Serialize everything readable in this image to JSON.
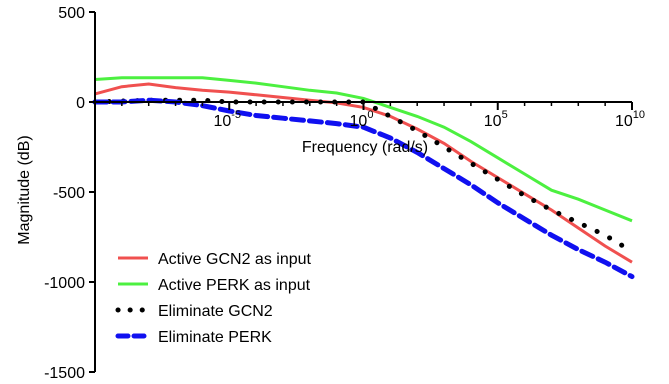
{
  "chart_data": {
    "type": "line",
    "title": "",
    "xlabel": "Frequency (rad/s)",
    "ylabel": "Magnitude (dB)",
    "x_scale": "log",
    "xlim": [
      1e-10,
      10000000000.0
    ],
    "ylim": [
      -1500,
      500
    ],
    "x_ticks": [
      {
        "value": 1e-05,
        "base": "10",
        "exp": "-5"
      },
      {
        "value": 1,
        "base": "10",
        "exp": "0"
      },
      {
        "value": 100000.0,
        "base": "10",
        "exp": "5"
      },
      {
        "value": 10000000000.0,
        "base": "10",
        "exp": "10"
      }
    ],
    "y_ticks": [
      500,
      0,
      -500,
      -1000,
      -1500
    ],
    "legend_position": "bottom-left",
    "series": [
      {
        "name": "Active GCN2 as input",
        "color": "#f0504f",
        "style": "solid",
        "x": [
          1e-10,
          1e-09,
          1e-08,
          1e-07,
          1e-06,
          1e-05,
          0.0001,
          0.001,
          0.01,
          0.1,
          1,
          10.0,
          100.0,
          1000.0,
          10000.0,
          100000.0,
          1000000.0,
          10000000.0,
          100000000.0,
          1000000000.0,
          10000000000.0
        ],
        "y": [
          45,
          85,
          100,
          80,
          65,
          55,
          40,
          25,
          10,
          -5,
          -30,
          -80,
          -150,
          -230,
          -330,
          -420,
          -510,
          -600,
          -700,
          -800,
          -890
        ]
      },
      {
        "name": "Active PERK as input",
        "color": "#4cf040",
        "style": "solid",
        "x": [
          1e-10,
          1e-09,
          1e-08,
          1e-07,
          1e-06,
          1e-05,
          0.0001,
          0.001,
          0.01,
          0.1,
          1,
          10.0,
          100.0,
          1000.0,
          10000.0,
          100000.0,
          1000000.0,
          10000000.0,
          100000000.0,
          1000000000.0,
          10000000000.0
        ],
        "y": [
          125,
          135,
          135,
          135,
          135,
          120,
          105,
          85,
          65,
          50,
          20,
          -30,
          -80,
          -140,
          -220,
          -310,
          -400,
          -490,
          -540,
          -600,
          -660
        ]
      },
      {
        "name": "Eliminate GCN2",
        "color": "#000000",
        "style": "dotted",
        "x": [
          1e-10,
          1e-09,
          1e-08,
          1e-07,
          1e-06,
          1e-05,
          0.0001,
          0.001,
          0.01,
          0.1,
          1,
          10.0,
          100.0,
          1000.0,
          10000.0,
          100000.0,
          1000000.0,
          10000000.0,
          100000000.0,
          1000000000.0,
          10000000000.0
        ],
        "y": [
          0,
          5,
          10,
          10,
          10,
          0,
          0,
          0,
          0,
          0,
          0,
          -80,
          -160,
          -250,
          -340,
          -430,
          -520,
          -600,
          -670,
          -740,
          -830
        ]
      },
      {
        "name": "Eliminate PERK",
        "color": "#1010f0",
        "style": "dashed",
        "x": [
          1e-10,
          1e-09,
          1e-08,
          1e-07,
          1e-06,
          1e-05,
          0.0001,
          0.001,
          0.01,
          0.1,
          1,
          10.0,
          100.0,
          1000.0,
          10000.0,
          100000.0,
          1000000.0,
          10000000.0,
          100000000.0,
          1000000000.0,
          10000000000.0
        ],
        "y": [
          0,
          0,
          10,
          0,
          -20,
          -50,
          -75,
          -90,
          -105,
          -120,
          -140,
          -200,
          -280,
          -370,
          -460,
          -560,
          -650,
          -740,
          -820,
          -890,
          -970
        ]
      }
    ]
  }
}
